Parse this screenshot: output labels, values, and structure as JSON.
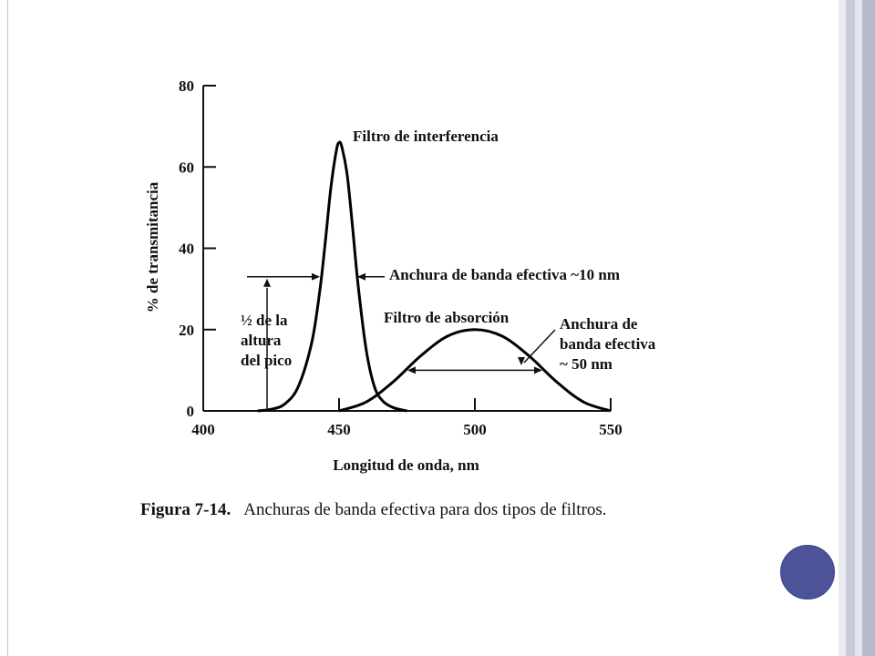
{
  "caption": {
    "label": "Figura 7-14.",
    "text": "Anchuras de banda efectiva para dos tipos de filtros."
  },
  "chart_data": {
    "type": "line",
    "xlabel": "Longitud de onda, nm",
    "ylabel": "% de transmitancia",
    "xlim": [
      400,
      550
    ],
    "ylim": [
      0,
      80
    ],
    "x_ticks": [
      400,
      450,
      500,
      550
    ],
    "y_ticks": [
      0,
      20,
      40,
      60,
      80
    ],
    "series": [
      {
        "name": "Filtro de interferencia",
        "color": "#000000",
        "x": [
          420,
          425,
          430,
          435,
          440,
          443,
          445,
          447,
          449,
          450,
          451,
          453,
          455,
          457,
          460,
          463,
          466,
          470,
          475
        ],
        "y": [
          0,
          0.4,
          1.7,
          6,
          17,
          30,
          42,
          55,
          64,
          66,
          65,
          58,
          45,
          31,
          15,
          6,
          2.5,
          0.8,
          0
        ]
      },
      {
        "name": "Filtro de absorción",
        "color": "#000000",
        "x": [
          450,
          460,
          470,
          480,
          490,
          500,
          510,
          520,
          530,
          540,
          550
        ],
        "y": [
          0,
          2.2,
          7.2,
          13.5,
          18.4,
          20,
          18.4,
          13.5,
          7.2,
          2.2,
          0
        ]
      }
    ],
    "annotations": [
      {
        "id": "interference-label",
        "lines": [
          "Filtro de interferencia"
        ]
      },
      {
        "id": "interference-width",
        "lines": [
          "Anchura de banda efectiva ~10 nm"
        ],
        "value_nm": 10
      },
      {
        "id": "absorption-label",
        "lines": [
          "Filtro de absorción"
        ]
      },
      {
        "id": "absorption-width",
        "lines": [
          "Anchura de",
          "banda efectiva",
          "~ 50 nm"
        ],
        "value_nm": 50
      },
      {
        "id": "half-height",
        "lines": [
          "½ de la",
          "altura",
          "del pico"
        ]
      }
    ],
    "grid": false
  }
}
